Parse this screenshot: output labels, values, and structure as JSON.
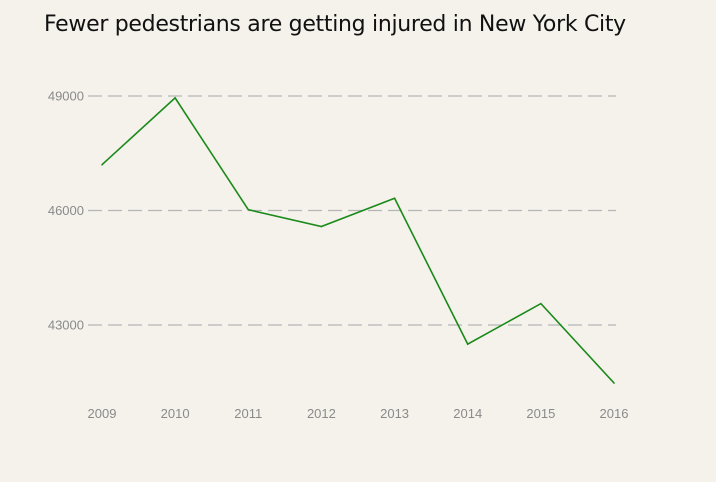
{
  "chart_data": {
    "type": "line",
    "title": "Fewer pedestrians are getting injured in New York City",
    "xlabel": "",
    "ylabel": "",
    "x": [
      "2009",
      "2010",
      "2011",
      "2012",
      "2013",
      "2014",
      "2015",
      "2016"
    ],
    "yticks": [
      "43000",
      "46000",
      "49000"
    ],
    "ylim": [
      41800,
      49200
    ],
    "grid": true,
    "series": [
      {
        "values": [
          47200,
          48950,
          46020,
          45580,
          46320,
          42500,
          43560,
          41480
        ],
        "color": "#1a8a1a"
      }
    ]
  }
}
